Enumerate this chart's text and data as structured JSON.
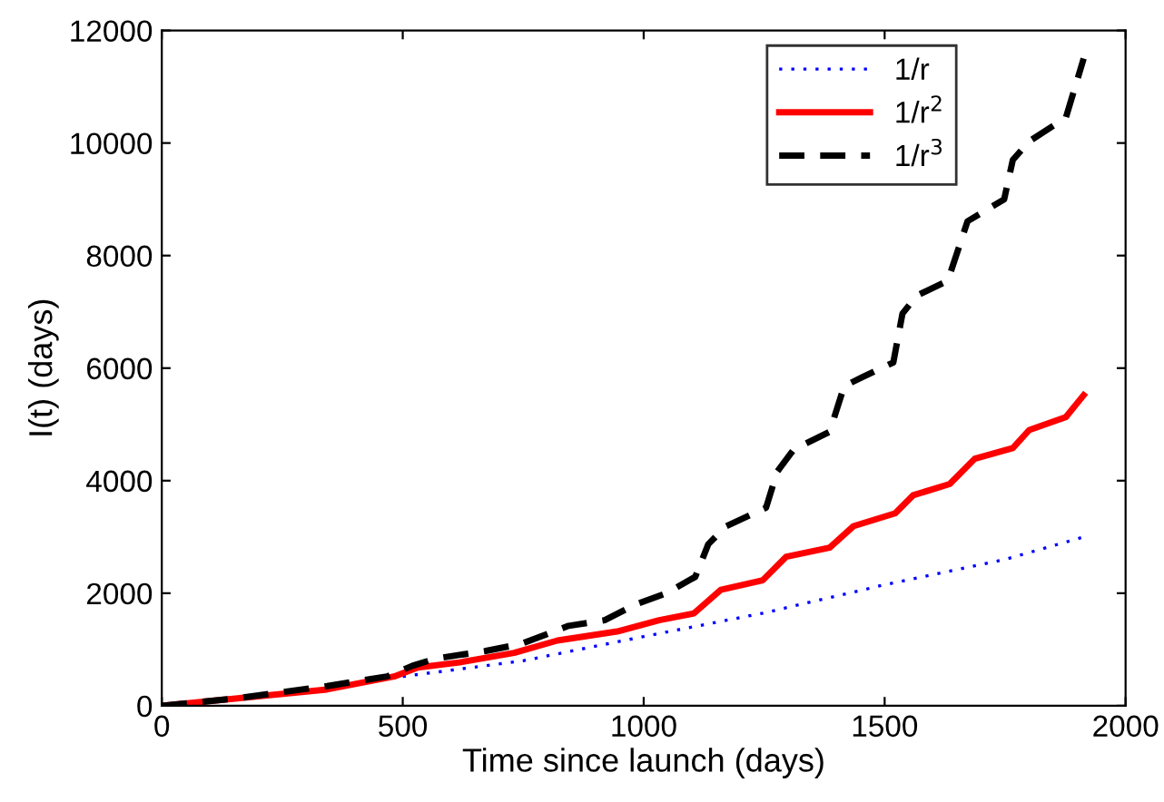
{
  "chart_data": {
    "type": "line",
    "xlabel": "Time since launch (days)",
    "ylabel": "I(t) (days)",
    "xlim": [
      0,
      2000
    ],
    "ylim": [
      0,
      12000
    ],
    "xticks": [
      0,
      500,
      1000,
      1500,
      2000
    ],
    "yticks": [
      0,
      2000,
      4000,
      6000,
      8000,
      10000,
      12000
    ],
    "grid": false,
    "legend": "top right",
    "series": [
      {
        "name": "1/r",
        "color": "#0000ff",
        "line_style": "dotted",
        "x": [
          500,
          750,
          1000,
          1250,
          1500,
          1750,
          1913
        ],
        "values": [
          520,
          800,
          1230,
          1650,
          2150,
          2600,
          3000
        ]
      },
      {
        "name": "1/r$^{2}$",
        "color": "#ff0000",
        "line_style": "solid",
        "x": [
          0,
          343,
          482,
          531,
          618,
          731,
          821,
          945,
          1032,
          1104,
          1160,
          1247,
          1296,
          1386,
          1435,
          1522,
          1559,
          1635,
          1687,
          1766,
          1800,
          1876,
          1913
        ],
        "values": [
          0,
          290,
          520,
          680,
          770,
          940,
          1160,
          1320,
          1520,
          1640,
          2060,
          2230,
          2650,
          2810,
          3190,
          3420,
          3740,
          3940,
          4390,
          4580,
          4900,
          5130,
          5520
        ]
      },
      {
        "name": "1/r$^{3}$",
        "color": "#000000",
        "line_style": "dashed",
        "x": [
          0,
          154,
          343,
          467,
          520,
          569,
          670,
          746,
          844,
          919,
          983,
          1047,
          1107,
          1134,
          1171,
          1254,
          1277,
          1311,
          1386,
          1416,
          1454,
          1518,
          1537,
          1567,
          1631,
          1672,
          1748,
          1766,
          1800,
          1876,
          1913
        ],
        "values": [
          0,
          130,
          350,
          520,
          710,
          840,
          970,
          1100,
          1420,
          1520,
          1800,
          2000,
          2290,
          2870,
          3190,
          3520,
          4160,
          4550,
          4870,
          5680,
          5840,
          6100,
          6970,
          7290,
          7550,
          8610,
          9000,
          9700,
          10030,
          10450,
          11500
        ]
      }
    ]
  }
}
